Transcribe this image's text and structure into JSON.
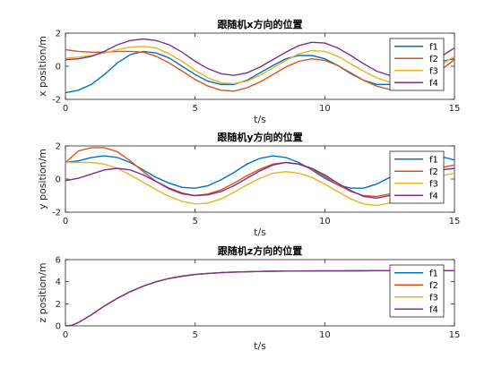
{
  "chart_data": [
    {
      "type": "line",
      "title": "跟随机x方向的位置",
      "xlabel": "t/s",
      "ylabel": "x position/m",
      "xlim": [
        0,
        15
      ],
      "ylim": [
        -2,
        2
      ],
      "xticks": [
        "0",
        "5",
        "10",
        "15"
      ],
      "yticks": [
        "-2",
        "0",
        "2"
      ],
      "legend_position": "top-right",
      "x": [
        0,
        0.5,
        1,
        1.5,
        2,
        2.5,
        3,
        3.5,
        4,
        4.5,
        5,
        5.5,
        6,
        6.5,
        7,
        7.5,
        8,
        8.5,
        9,
        9.5,
        10,
        10.5,
        11,
        11.5,
        12,
        12.5,
        13,
        13.5,
        14,
        14.5,
        15
      ],
      "series": [
        {
          "name": "f1",
          "color": "#0072BD",
          "values": [
            -1.6,
            -1.45,
            -1.1,
            -0.5,
            0.2,
            0.7,
            0.9,
            0.8,
            0.5,
            0.0,
            -0.5,
            -0.9,
            -1.1,
            -1.1,
            -0.85,
            -0.4,
            0.05,
            0.45,
            0.65,
            0.65,
            0.45,
            0.05,
            -0.45,
            -0.85,
            -1.1,
            -1.1,
            -0.85,
            -0.45,
            0.0,
            0.3,
            0.45
          ]
        },
        {
          "name": "f2",
          "color": "#D95319",
          "values": [
            1.0,
            0.9,
            0.85,
            0.85,
            0.9,
            0.9,
            0.85,
            0.6,
            0.2,
            -0.3,
            -0.8,
            -1.2,
            -1.45,
            -1.5,
            -1.3,
            -0.95,
            -0.5,
            -0.05,
            0.3,
            0.45,
            0.35,
            0.05,
            -0.4,
            -0.85,
            -1.2,
            -1.4,
            -1.4,
            -1.15,
            -0.7,
            -0.2,
            0.4
          ]
        },
        {
          "name": "f3",
          "color": "#EDB120",
          "values": [
            0.5,
            0.55,
            0.65,
            0.8,
            1.0,
            1.15,
            1.2,
            1.1,
            0.75,
            0.3,
            -0.25,
            -0.7,
            -1.0,
            -1.05,
            -0.9,
            -0.55,
            -0.1,
            0.35,
            0.75,
            0.95,
            0.9,
            0.6,
            0.15,
            -0.3,
            -0.7,
            -0.95,
            -1.0,
            -0.8,
            -0.4,
            0.1,
            0.6
          ]
        },
        {
          "name": "f4",
          "color": "#7E2F8E",
          "values": [
            0.4,
            0.45,
            0.6,
            0.9,
            1.3,
            1.55,
            1.65,
            1.55,
            1.3,
            0.85,
            0.3,
            -0.15,
            -0.45,
            -0.55,
            -0.4,
            -0.05,
            0.4,
            0.85,
            1.25,
            1.45,
            1.4,
            1.1,
            0.65,
            0.15,
            -0.3,
            -0.55,
            -0.55,
            -0.3,
            0.15,
            0.6,
            1.1
          ]
        }
      ]
    },
    {
      "type": "line",
      "title": "跟随机y方向的位置",
      "xlabel": "t/s",
      "ylabel": "y position/m",
      "xlim": [
        0,
        15
      ],
      "ylim": [
        -2,
        2
      ],
      "xticks": [
        "0",
        "5",
        "10",
        "15"
      ],
      "yticks": [
        "-2",
        "0",
        "2"
      ],
      "legend_position": "top-right",
      "x": [
        0,
        0.5,
        1,
        1.5,
        2,
        2.5,
        3,
        3.5,
        4,
        4.5,
        5,
        5.5,
        6,
        6.5,
        7,
        7.5,
        8,
        8.5,
        9,
        9.5,
        10,
        10.5,
        11,
        11.5,
        12,
        12.5,
        13,
        13.5,
        14,
        14.5,
        15
      ],
      "series": [
        {
          "name": "f1",
          "color": "#0072BD",
          "values": [
            1.0,
            1.1,
            1.3,
            1.4,
            1.3,
            1.0,
            0.55,
            0.1,
            -0.25,
            -0.5,
            -0.55,
            -0.4,
            -0.05,
            0.4,
            0.9,
            1.25,
            1.4,
            1.3,
            1.0,
            0.55,
            0.05,
            -0.35,
            -0.55,
            -0.55,
            -0.3,
            0.1,
            0.55,
            0.95,
            1.25,
            1.35,
            1.15
          ]
        },
        {
          "name": "f2",
          "color": "#D95319",
          "values": [
            1.0,
            1.7,
            1.9,
            1.9,
            1.65,
            1.1,
            0.45,
            -0.15,
            -0.6,
            -0.9,
            -1.0,
            -0.9,
            -0.65,
            -0.25,
            0.2,
            0.6,
            0.9,
            1.0,
            0.9,
            0.6,
            0.15,
            -0.35,
            -0.75,
            -1.0,
            -1.05,
            -0.9,
            -0.55,
            -0.1,
            0.35,
            0.7,
            0.85
          ]
        },
        {
          "name": "f3",
          "color": "#EDB120",
          "values": [
            1.0,
            1.0,
            1.0,
            0.9,
            0.65,
            0.25,
            -0.2,
            -0.65,
            -1.05,
            -1.35,
            -1.5,
            -1.45,
            -1.2,
            -0.8,
            -0.35,
            0.05,
            0.35,
            0.45,
            0.35,
            0.1,
            -0.3,
            -0.75,
            -1.2,
            -1.5,
            -1.6,
            -1.45,
            -1.1,
            -0.65,
            -0.15,
            0.2,
            0.35
          ]
        },
        {
          "name": "f4",
          "color": "#7E2F8E",
          "values": [
            -0.1,
            0.05,
            0.3,
            0.55,
            0.65,
            0.55,
            0.25,
            -0.15,
            -0.55,
            -0.85,
            -1.0,
            -0.95,
            -0.75,
            -0.4,
            0.05,
            0.5,
            0.85,
            1.0,
            0.9,
            0.65,
            0.25,
            -0.25,
            -0.7,
            -1.05,
            -1.15,
            -1.0,
            -0.65,
            -0.2,
            0.25,
            0.55,
            0.65
          ]
        }
      ]
    },
    {
      "type": "line",
      "title": "跟随机z方向的位置",
      "xlabel": "t/s",
      "ylabel": "z position/m",
      "xlim": [
        0,
        15
      ],
      "ylim": [
        0,
        6
      ],
      "xticks": [
        "0",
        "5",
        "10",
        "15"
      ],
      "yticks": [
        "0",
        "2",
        "4",
        "6"
      ],
      "legend_position": "top-right",
      "x": [
        0,
        0.25,
        0.5,
        1,
        1.5,
        2,
        2.5,
        3,
        3.5,
        4,
        4.5,
        5,
        5.5,
        6,
        6.5,
        7,
        7.5,
        8,
        9,
        10,
        11,
        12,
        13,
        14,
        15
      ],
      "series": [
        {
          "name": "f1",
          "color": "#0072BD",
          "values": [
            0,
            0.05,
            0.3,
            1.0,
            1.8,
            2.5,
            3.1,
            3.6,
            4.0,
            4.3,
            4.5,
            4.65,
            4.75,
            4.82,
            4.87,
            4.9,
            4.93,
            4.95,
            4.97,
            4.98,
            4.99,
            5.0,
            5.0,
            5.0,
            5.0
          ]
        },
        {
          "name": "f2",
          "color": "#D95319",
          "values": [
            0,
            0.05,
            0.3,
            1.0,
            1.8,
            2.5,
            3.1,
            3.6,
            4.0,
            4.3,
            4.5,
            4.65,
            4.75,
            4.82,
            4.87,
            4.9,
            4.93,
            4.95,
            4.97,
            4.98,
            4.99,
            5.0,
            5.0,
            5.0,
            5.0
          ]
        },
        {
          "name": "f3",
          "color": "#EDB120",
          "values": [
            0,
            0.05,
            0.3,
            1.0,
            1.8,
            2.5,
            3.1,
            3.6,
            4.0,
            4.3,
            4.5,
            4.65,
            4.75,
            4.82,
            4.87,
            4.9,
            4.93,
            4.95,
            4.97,
            4.98,
            4.99,
            5.0,
            5.0,
            5.0,
            5.0
          ]
        },
        {
          "name": "f4",
          "color": "#7E2F8E",
          "values": [
            0,
            0.05,
            0.3,
            1.0,
            1.8,
            2.5,
            3.1,
            3.6,
            4.0,
            4.3,
            4.5,
            4.65,
            4.75,
            4.82,
            4.87,
            4.9,
            4.93,
            4.95,
            4.97,
            4.98,
            4.99,
            5.0,
            5.0,
            5.0,
            5.0
          ]
        }
      ]
    }
  ]
}
